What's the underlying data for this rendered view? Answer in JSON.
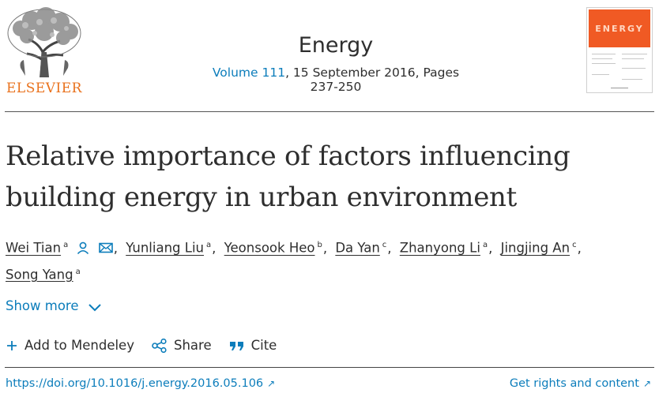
{
  "header": {
    "publisher": "ELSEVIER",
    "journal": "Energy",
    "volume": "Volume 111",
    "issue_rest": ", 15 September 2016, Pages 237-250",
    "cover_title": "ENERGY"
  },
  "article": {
    "title": "Relative importance of factors influencing building energy in urban environment",
    "authors": [
      {
        "name": "Wei Tian",
        "sup": "a"
      },
      {
        "name": "Yunliang Liu",
        "sup": "a"
      },
      {
        "name": "Yeonsook Heo",
        "sup": "b"
      },
      {
        "name": "Da Yan",
        "sup": "c"
      },
      {
        "name": "Zhanyong Li",
        "sup": "a"
      },
      {
        "name": "Jingjing An",
        "sup": "c"
      },
      {
        "name": "Song Yang",
        "sup": "a"
      }
    ],
    "show_more": "Show more"
  },
  "actions": {
    "add_mendeley": "Add to Mendeley",
    "share": "Share",
    "cite": "Cite"
  },
  "footer": {
    "doi": "https://doi.org/10.1016/j.energy.2016.05.106",
    "rights": "Get rights and content"
  },
  "colors": {
    "link": "#0c7dbb",
    "publisher_orange": "#e9711c",
    "cover_orange": "#f05a24",
    "text": "#2e2e2e"
  }
}
